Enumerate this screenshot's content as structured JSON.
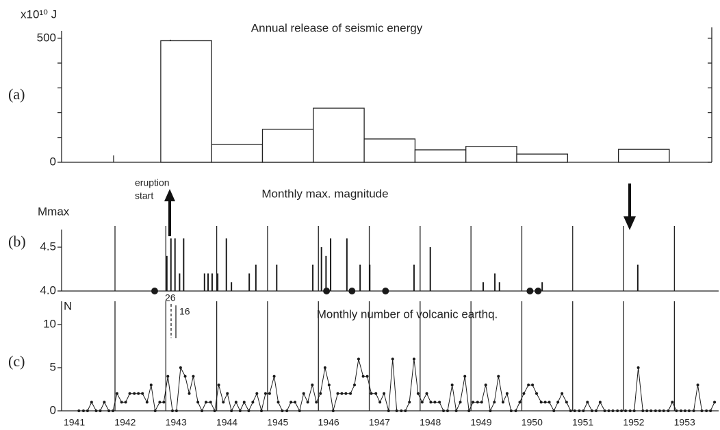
{
  "chart_data": [
    {
      "type": "histogram",
      "panel_label": "(a)",
      "title": "Annual release of seismic energy",
      "ylabel": "x10¹⁰ J",
      "bins": [
        1942.9,
        1943.9,
        1944.9,
        1945.9,
        1946.9,
        1947.9,
        1948.9,
        1949.9,
        1950.9,
        1951.9,
        1952.9
      ],
      "values": [
        490,
        72,
        133,
        218,
        94,
        50,
        64,
        33,
        0,
        52
      ],
      "color": "#ffffff",
      "xlim": [
        1940.95,
        1953.87
      ],
      "ylim": [
        0,
        530
      ],
      "yticks": [
        0,
        500
      ],
      "minor_yticks": [
        100,
        200,
        300,
        400
      ]
    },
    {
      "type": "spike",
      "panel_label": "(b)",
      "title": "Monthly max. magnitude",
      "ylabel": "Mmax",
      "annotations": [
        "eruption",
        "start"
      ],
      "spikes": {
        "x": [
          1943.02,
          1943.1,
          1943.18,
          1943.27,
          1943.35,
          1943.76,
          1943.83,
          1943.91,
          1944.02,
          1944.19,
          1944.29,
          1944.64,
          1944.77,
          1945.18,
          1945.89,
          1946.06,
          1946.15,
          1946.24,
          1946.56,
          1946.82,
          1947.01,
          1947.88,
          1948.2,
          1949.24,
          1949.47,
          1949.56,
          1950.4,
          1952.28
        ],
        "values": [
          4.4,
          4.6,
          4.6,
          4.2,
          4.6,
          4.2,
          4.2,
          4.2,
          4.2,
          4.6,
          4.1,
          4.2,
          4.3,
          4.3,
          4.3,
          4.5,
          4.4,
          4.6,
          4.6,
          4.3,
          4.3,
          4.3,
          4.5,
          4.1,
          4.2,
          4.1,
          4.1,
          4.3
        ]
      },
      "dots": {
        "x": [
          1942.78,
          1946.16,
          1946.66,
          1947.32,
          1950.16,
          1950.32
        ],
        "values": [
          4,
          4,
          4,
          4,
          4,
          4
        ]
      },
      "color": "#1a1a1a",
      "xlim": [
        1940.95,
        1953.87
      ],
      "ylim": [
        4,
        4.7
      ],
      "yticks": [
        {
          "value": 4,
          "label": "4.0"
        },
        4.5
      ],
      "year_lines": [
        1942,
        1943,
        1944,
        1945,
        1946,
        1947,
        1948,
        1949,
        1950,
        1951,
        1952,
        1953
      ]
    },
    {
      "type": "line",
      "panel_label": "(c)",
      "title": "Monthly number of volcanic earthq.",
      "ylabel": "N",
      "annotations": [
        "26",
        "16"
      ],
      "x": [
        1941.29,
        1941.38,
        1941.46,
        1941.54,
        1941.63,
        1941.71,
        1941.79,
        1941.88,
        1941.96,
        1942.04,
        1942.13,
        1942.21,
        1942.29,
        1942.38,
        1942.46,
        1942.54,
        1942.63,
        1942.71,
        1942.79,
        1942.88,
        1942.96,
        1943.04,
        1943.13,
        1943.21,
        1943.29,
        1943.38,
        1943.46,
        1943.54,
        1943.63,
        1943.71,
        1943.79,
        1943.88,
        1943.96,
        1944.04,
        1944.13,
        1944.21,
        1944.29,
        1944.38,
        1944.46,
        1944.54,
        1944.63,
        1944.71,
        1944.79,
        1944.88,
        1944.96,
        1945.04,
        1945.13,
        1945.21,
        1945.29,
        1945.38,
        1945.46,
        1945.54,
        1945.63,
        1945.71,
        1945.79,
        1945.88,
        1945.96,
        1946.04,
        1946.13,
        1946.21,
        1946.29,
        1946.38,
        1946.46,
        1946.54,
        1946.63,
        1946.71,
        1946.79,
        1946.88,
        1946.96,
        1947.04,
        1947.13,
        1947.21,
        1947.29,
        1947.38,
        1947.46,
        1947.54,
        1947.63,
        1947.71,
        1947.79,
        1947.88,
        1947.96,
        1948.04,
        1948.13,
        1948.21,
        1948.29,
        1948.38,
        1948.46,
        1948.54,
        1948.63,
        1948.71,
        1948.79,
        1948.88,
        1948.96,
        1949.04,
        1949.13,
        1949.21,
        1949.29,
        1949.38,
        1949.46,
        1949.54,
        1949.63,
        1949.71,
        1949.79,
        1949.88,
        1949.96,
        1950.04,
        1950.13,
        1950.21,
        1950.29,
        1950.38,
        1950.46,
        1950.54,
        1950.63,
        1950.71,
        1950.79,
        1950.88,
        1950.96,
        1951.04,
        1951.13,
        1951.21,
        1951.29,
        1951.38,
        1951.46,
        1951.54,
        1951.63,
        1951.71,
        1951.79,
        1951.88,
        1951.96,
        1952.04,
        1952.13,
        1952.21,
        1952.29,
        1952.38,
        1952.46,
        1952.54,
        1952.63,
        1952.71,
        1952.79,
        1952.88,
        1952.96,
        1953.04,
        1953.13,
        1953.21,
        1953.29,
        1953.38,
        1953.46,
        1953.54,
        1953.63,
        1953.71,
        1953.79
      ],
      "values": [
        0,
        0,
        0,
        1,
        0,
        0,
        1,
        0,
        0,
        2,
        1,
        1,
        2,
        2,
        2,
        2,
        1,
        3,
        0,
        1,
        1,
        4,
        0,
        0,
        5,
        4,
        2,
        4,
        1,
        0,
        1,
        1,
        0,
        3,
        1,
        2,
        0,
        1,
        0,
        1,
        0,
        1,
        2,
        0,
        2,
        2,
        4,
        1,
        0,
        0,
        1,
        1,
        0,
        2,
        1,
        3,
        1,
        2,
        5,
        3,
        0,
        2,
        2,
        2,
        2,
        3,
        6,
        4,
        4,
        2,
        2,
        1,
        2,
        0,
        6,
        0,
        0,
        0,
        1,
        6,
        2,
        1,
        2,
        1,
        1,
        1,
        0,
        0,
        3,
        0,
        1,
        4,
        0,
        1,
        1,
        1,
        3,
        0,
        1,
        4,
        1,
        2,
        0,
        0,
        1,
        2,
        3,
        3,
        2,
        1,
        1,
        1,
        0,
        1,
        2,
        1,
        0,
        0,
        0,
        0,
        1,
        0,
        0,
        1,
        0,
        0,
        0,
        0,
        0,
        0,
        0,
        0,
        5,
        0,
        0,
        0,
        0,
        0,
        0,
        0,
        1,
        0,
        0,
        0,
        0,
        0,
        3,
        0,
        0,
        0,
        1
      ],
      "color": "#1a1a1a",
      "xlim": [
        1940.95,
        1953.87
      ],
      "ylim": [
        0,
        12.7
      ],
      "yticks": [
        0,
        5,
        10
      ],
      "year_lines": [
        1942,
        1943,
        1944,
        1945,
        1946,
        1947,
        1948,
        1949,
        1950,
        1951,
        1952,
        1953
      ],
      "year_labels": [
        "1941",
        "1942",
        "1943",
        "1944",
        "1945",
        "1946",
        "1947",
        "1948",
        "1949",
        "1950",
        "1951",
        "1952",
        "1953"
      ]
    }
  ]
}
